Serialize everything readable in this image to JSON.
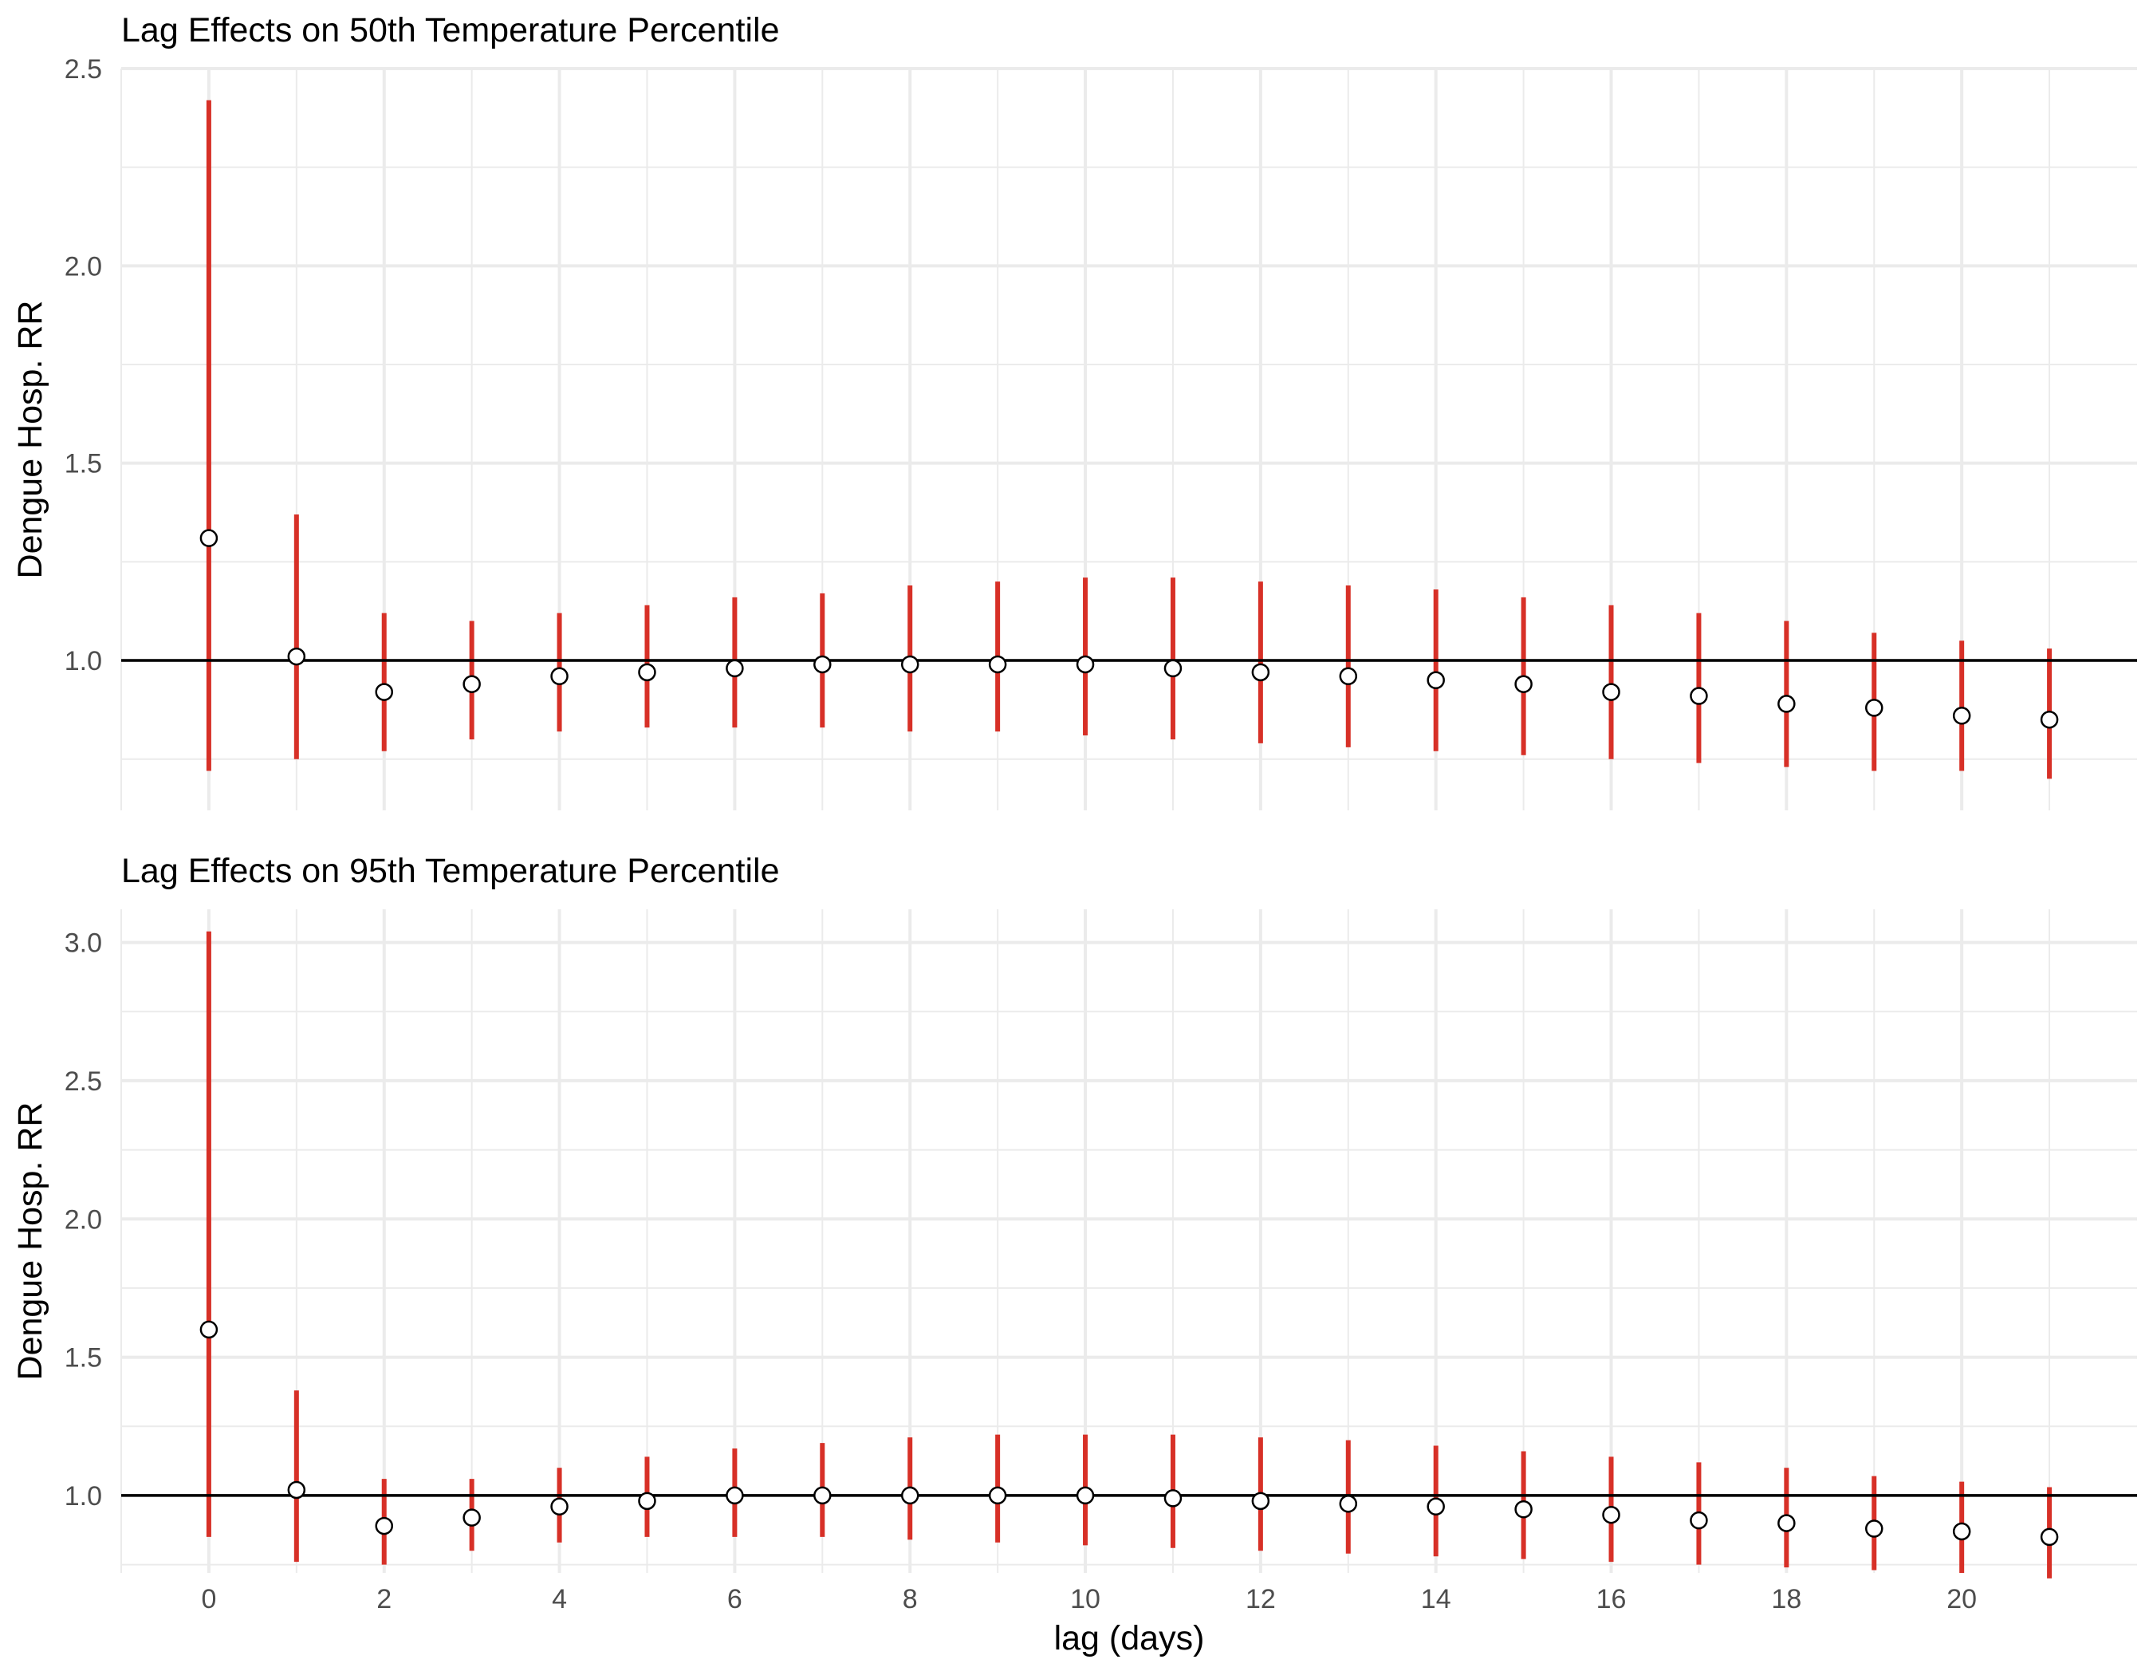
{
  "chart_data": [
    {
      "type": "scatter",
      "title": "Lag Effects on 50th Temperature Percentile",
      "xlabel": "",
      "ylabel": "Dengue Hosp. RR",
      "xlim": [
        -1,
        22
      ],
      "ylim": [
        0.62,
        2.5
      ],
      "yticks": [
        1.0,
        1.5,
        2.0,
        2.5
      ],
      "ytick_labels": [
        "1.0",
        "1.5",
        "2.0",
        "2.5"
      ],
      "xticks": [
        0,
        2,
        4,
        6,
        8,
        10,
        12,
        14,
        16,
        18,
        20
      ],
      "xtick_labels": [],
      "reference_line": 1.0,
      "grid": true,
      "colors": {
        "interval": "#d73027",
        "point_fill": "#ffffff",
        "point_stroke": "#000000",
        "reference": "#000000",
        "grid": "#ebebeb"
      },
      "lag": [
        0,
        1,
        2,
        3,
        4,
        5,
        6,
        7,
        8,
        9,
        10,
        11,
        12,
        13,
        14,
        15,
        16,
        17,
        18,
        19,
        20,
        21
      ],
      "rr": [
        1.31,
        1.01,
        0.92,
        0.94,
        0.96,
        0.97,
        0.98,
        0.99,
        0.99,
        0.99,
        0.99,
        0.98,
        0.97,
        0.96,
        0.95,
        0.94,
        0.92,
        0.91,
        0.89,
        0.88,
        0.86,
        0.85
      ],
      "lower": [
        0.72,
        0.75,
        0.77,
        0.8,
        0.82,
        0.83,
        0.83,
        0.83,
        0.82,
        0.82,
        0.81,
        0.8,
        0.79,
        0.78,
        0.77,
        0.76,
        0.75,
        0.74,
        0.73,
        0.72,
        0.72,
        0.7
      ],
      "upper": [
        2.42,
        1.37,
        1.12,
        1.1,
        1.12,
        1.14,
        1.16,
        1.17,
        1.19,
        1.2,
        1.21,
        1.21,
        1.2,
        1.19,
        1.18,
        1.16,
        1.14,
        1.12,
        1.1,
        1.07,
        1.05,
        1.03
      ]
    },
    {
      "type": "scatter",
      "title": "Lag Effects on 95th Temperature Percentile",
      "xlabel": "lag (days)",
      "ylabel": "Dengue Hosp. RR",
      "xlim": [
        -1,
        22
      ],
      "ylim": [
        0.72,
        3.12
      ],
      "yticks": [
        1.0,
        1.5,
        2.0,
        2.5,
        3.0
      ],
      "ytick_labels": [
        "1.0",
        "1.5",
        "2.0",
        "2.5",
        "3.0"
      ],
      "xticks": [
        0,
        2,
        4,
        6,
        8,
        10,
        12,
        14,
        16,
        18,
        20
      ],
      "xtick_labels": [
        "0",
        "2",
        "4",
        "6",
        "8",
        "10",
        "12",
        "14",
        "16",
        "18",
        "20"
      ],
      "reference_line": 1.0,
      "grid": true,
      "colors": {
        "interval": "#d73027",
        "point_fill": "#ffffff",
        "point_stroke": "#000000",
        "reference": "#000000",
        "grid": "#ebebeb"
      },
      "lag": [
        0,
        1,
        2,
        3,
        4,
        5,
        6,
        7,
        8,
        9,
        10,
        11,
        12,
        13,
        14,
        15,
        16,
        17,
        18,
        19,
        20,
        21
      ],
      "rr": [
        1.6,
        1.02,
        0.89,
        0.92,
        0.96,
        0.98,
        1.0,
        1.0,
        1.0,
        1.0,
        1.0,
        0.99,
        0.98,
        0.97,
        0.96,
        0.95,
        0.93,
        0.91,
        0.9,
        0.88,
        0.87,
        0.85
      ],
      "lower": [
        0.85,
        0.76,
        0.75,
        0.8,
        0.83,
        0.85,
        0.85,
        0.85,
        0.84,
        0.83,
        0.82,
        0.81,
        0.8,
        0.79,
        0.78,
        0.77,
        0.76,
        0.75,
        0.74,
        0.73,
        0.72,
        0.7
      ],
      "upper": [
        3.04,
        1.38,
        1.06,
        1.06,
        1.1,
        1.14,
        1.17,
        1.19,
        1.21,
        1.22,
        1.22,
        1.22,
        1.21,
        1.2,
        1.18,
        1.16,
        1.14,
        1.12,
        1.1,
        1.07,
        1.05,
        1.03
      ]
    }
  ]
}
